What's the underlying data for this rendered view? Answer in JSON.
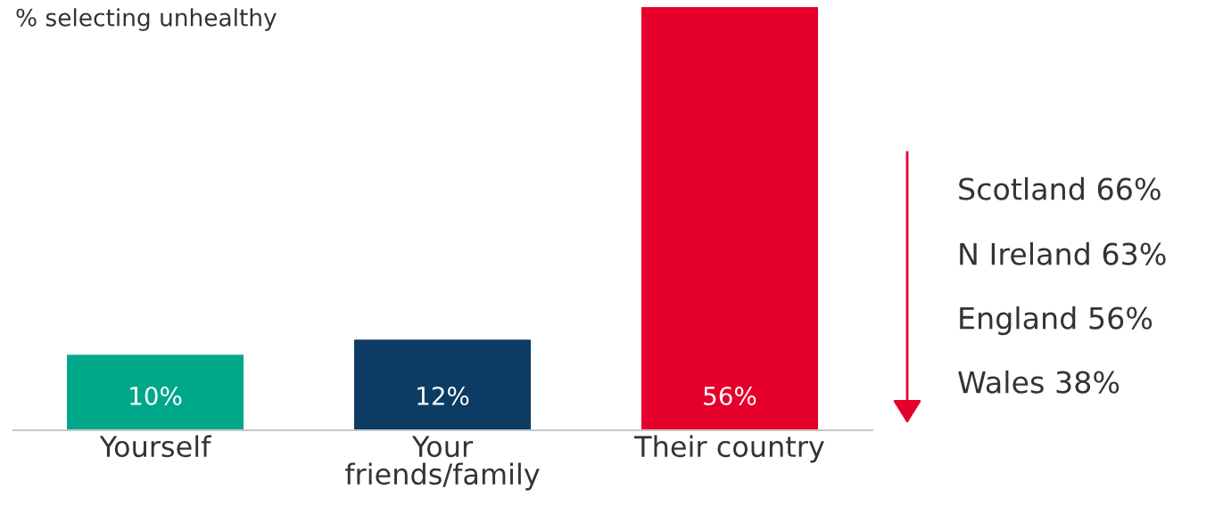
{
  "chart_data": {
    "type": "bar",
    "title": "% selecting unhealthy",
    "categories": [
      "Yourself",
      "Your\nfriends/family",
      "Their country"
    ],
    "values": [
      10,
      12,
      56
    ],
    "colors": [
      "#00a88a",
      "#0c3c63",
      "#e4002b"
    ],
    "value_labels": [
      "10%",
      "12%",
      "56%"
    ],
    "annotations": [
      "Scotland 66%",
      "N Ireland 63%",
      "England 56%",
      "Wales 38%"
    ],
    "grid": false
  }
}
